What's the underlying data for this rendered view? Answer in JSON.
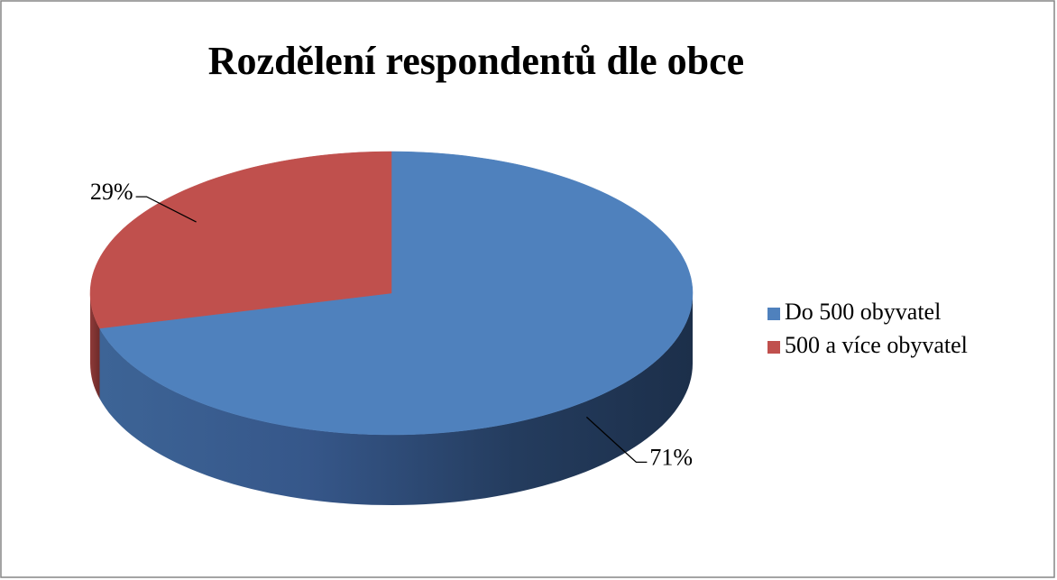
{
  "chart_data": {
    "type": "pie3d",
    "title": "Rozdělení respondentů dle obce",
    "categories": [
      "Do 500 obyvatel",
      "500 a více obyvatel"
    ],
    "values": [
      71,
      29
    ],
    "value_labels": [
      "71%",
      "29%"
    ],
    "colors": [
      "#4f81bd",
      "#c0504d"
    ],
    "legend": "right"
  }
}
